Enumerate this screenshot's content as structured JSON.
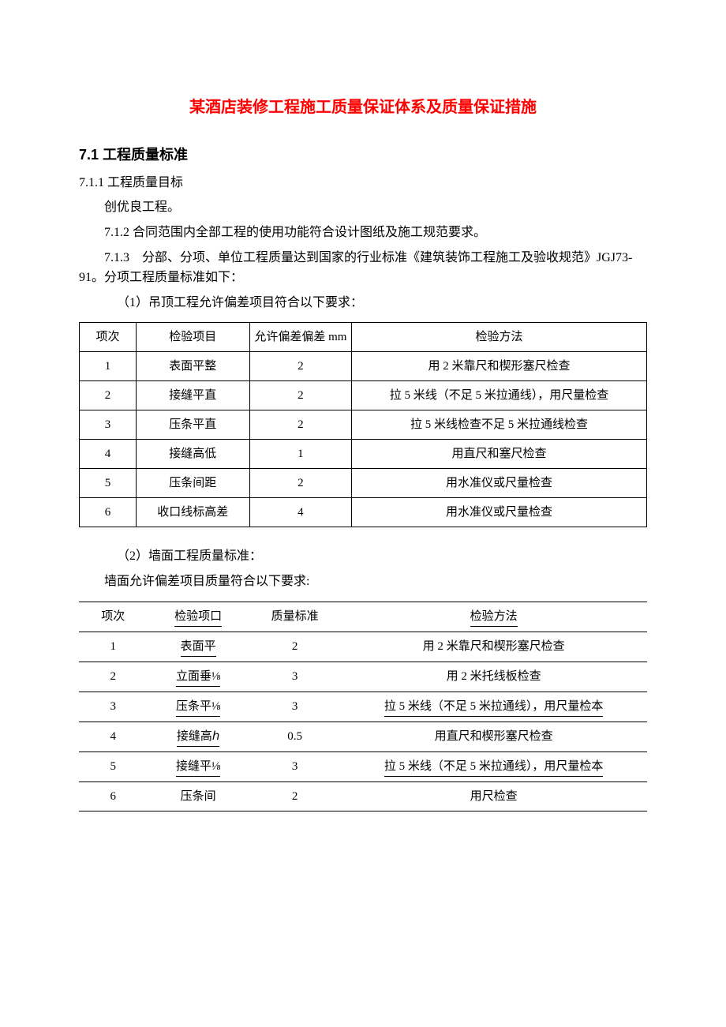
{
  "title": "某酒店装修工程施工质量保证体系及质量保证措施",
  "section_7_1": "7.1 工程质量标准",
  "p_7_1_1": "7.1.1 工程质量目标",
  "p_goal": "创优良工程。",
  "p_7_1_2": "7.1.2 合同范围内全部工程的使用功能符合设计图纸及施工规范要求。",
  "p_7_1_3": "7.1.3　分部、分项、单位工程质量达到国家的行业标准《建筑装饰工程施工及验收规范》JGJ73-91。分项工程质量标准如下：",
  "p_item1": "（1）吊顶工程允许偏差项目符合以下要求：",
  "table1": {
    "headers": {
      "c1": "项次",
      "c2": "检验项目",
      "c3": "允许偏差偏差 mm",
      "c4": "检验方法"
    },
    "rows": [
      {
        "c1": "1",
        "c2": "表面平整",
        "c3": "2",
        "c4": "用 2 米靠尺和楔形塞尺检查"
      },
      {
        "c1": "2",
        "c2": "接缝平直",
        "c3": "2",
        "c4": "拉 5 米线（不足 5 米拉通线），用尺量检查"
      },
      {
        "c1": "3",
        "c2": "压条平直",
        "c3": "2",
        "c4": "拉 5 米线检查不足 5 米拉通线检查"
      },
      {
        "c1": "4",
        "c2": "接缝高低",
        "c3": "1",
        "c4": "用直尺和塞尺检查"
      },
      {
        "c1": "5",
        "c2": "压条间距",
        "c3": "2",
        "c4": "用水准仪或尺量检查"
      },
      {
        "c1": "6",
        "c2": "收口线标高差",
        "c3": "4",
        "c4": "用水准仪或尺量检查"
      }
    ]
  },
  "p_item2": "（2）墙面工程质量标准：",
  "p_wall": "墙面允许偏差项目质量符合以下要求:",
  "table2": {
    "headers": {
      "c1": "项次",
      "c2": "检验项口",
      "c3": "质量标准",
      "c4": "检验方法"
    },
    "rows": [
      {
        "c1": "1",
        "c2": "表面平",
        "c3": "2",
        "c4": "用 2 米靠尺和楔形塞尺检查"
      },
      {
        "c1": "2",
        "c2": "立面垂⅛",
        "c3": "3",
        "c4": "用 2 米托线板检查"
      },
      {
        "c1": "3",
        "c2": "压条平⅛",
        "c3": "3",
        "c4": "拉 5 米线（不足 5 米拉通线），用尺量检本"
      },
      {
        "c1": "4",
        "c2": "接缝高ℎ",
        "c3": "0.5",
        "c4": "用直尺和楔形塞尺检查"
      },
      {
        "c1": "5",
        "c2": "接缝平⅛",
        "c3": "3",
        "c4": "拉 5 米线（不足 5 米拉通线），用尺量检本"
      },
      {
        "c1": "6",
        "c2": "压条间",
        "c3": "2",
        "c4": "用尺检查"
      }
    ]
  }
}
